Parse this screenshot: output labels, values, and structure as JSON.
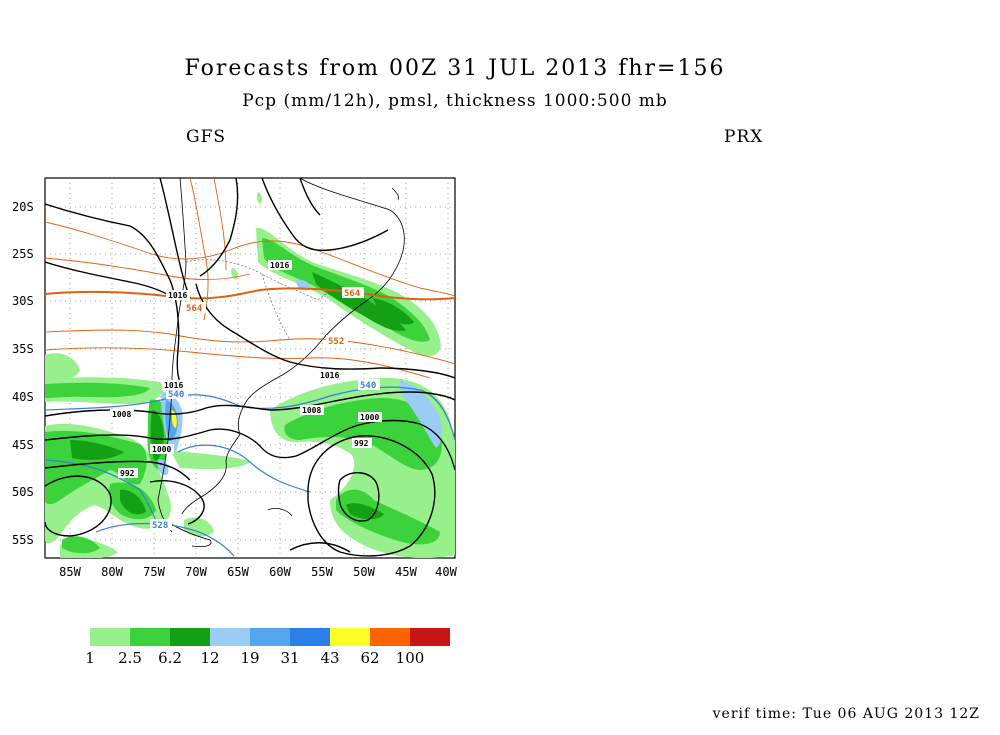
{
  "header": {
    "title": "Forecasts from 00Z 31 JUL 2013   fhr=156",
    "subtitle": "Pcp (mm/12h), pmsl, thickness 1000:500 mb",
    "model_left": "GFS",
    "model_right": "PRX"
  },
  "footer": {
    "verif_time": "verif time: Tue 06 AUG 2013 12Z"
  },
  "map": {
    "lat_labels": [
      "20S",
      "25S",
      "30S",
      "35S",
      "40S",
      "45S",
      "50S",
      "55S"
    ],
    "lon_labels": [
      "85W",
      "80W",
      "75W",
      "70W",
      "65W",
      "60W",
      "55W",
      "50W",
      "45W",
      "40W"
    ],
    "pressure_labels": [
      "1016",
      "1016",
      "1016",
      "1016",
      "1008",
      "1008",
      "1000",
      "1000",
      "992",
      "992"
    ],
    "thickness_labels": [
      "564",
      "564",
      "552",
      "540",
      "540",
      "528"
    ],
    "colors": {
      "pressure": "#000000",
      "thickness_warm": "#e06010",
      "thickness_cold": "#3a7fd5",
      "coast": "#000000"
    }
  },
  "colorbar": {
    "colors": [
      "#98f08c",
      "#3cd23c",
      "#14a014",
      "#9acdf5",
      "#55a5f0",
      "#2a7fe8",
      "#ffff28",
      "#ff6400",
      "#c81414"
    ],
    "labels": [
      "1",
      "2.5",
      "6.2",
      "12",
      "19",
      "31",
      "43",
      "62",
      "100"
    ]
  }
}
